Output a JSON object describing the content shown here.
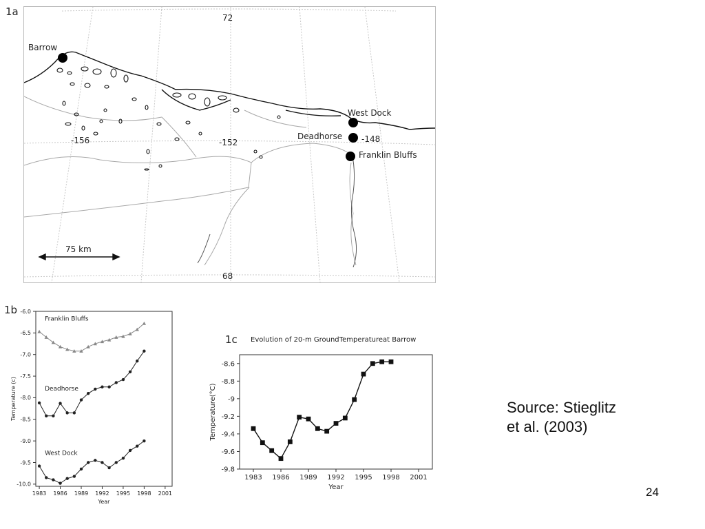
{
  "map": {
    "panel_label": "1a",
    "lat_labels": {
      "top": "72",
      "bottom": "68"
    },
    "lon_labels": [
      "-156",
      "-152",
      "-148"
    ],
    "places": {
      "barrow": "Barrow",
      "west_dock": "West  Dock",
      "deadhorse": "Deadhorse",
      "franklin_bluffs": "Franklin  Bluffs"
    },
    "scale_label": "75 km"
  },
  "chart_data": [
    {
      "id": "1b",
      "type": "line",
      "panel_label": "1b",
      "title": "",
      "xlabel": "Year",
      "ylabel": "Temperature (c)",
      "xlim": [
        1982.5,
        2002
      ],
      "ylim": [
        -10.05,
        -6.0
      ],
      "x_ticks": [
        1983,
        1986,
        1989,
        1992,
        1995,
        1998,
        2001
      ],
      "x_tick_labels": [
        "1983",
        "1986",
        "1989",
        "1992",
        "1995",
        "1998",
        "2001"
      ],
      "y_ticks": [
        -6.0,
        -6.5,
        -7.0,
        -7.5,
        -8.0,
        -8.5,
        -9.0,
        -9.5,
        -10.0
      ],
      "y_tick_labels": [
        "-6.0",
        "-6.5",
        "-7.0",
        "-7.5",
        "-8.0",
        "-8.5",
        "-9.0",
        "-9.5",
        "-10.0"
      ],
      "series": [
        {
          "name": "Franklin Bluffs",
          "marker": "triangle",
          "color": "#888888",
          "x": [
            1983,
            1984,
            1985,
            1986,
            1987,
            1988,
            1989,
            1990,
            1991,
            1992,
            1993,
            1994,
            1995,
            1996,
            1997,
            1998
          ],
          "y": [
            -6.47,
            -6.6,
            -6.72,
            -6.82,
            -6.88,
            -6.92,
            -6.92,
            -6.82,
            -6.75,
            -6.7,
            -6.66,
            -6.6,
            -6.58,
            -6.52,
            -6.42,
            -6.28
          ]
        },
        {
          "name": "Deadhorse",
          "marker": "circle",
          "color": "#222222",
          "x": [
            1983,
            1984,
            1985,
            1986,
            1987,
            1988,
            1989,
            1990,
            1991,
            1992,
            1993,
            1994,
            1995,
            1996,
            1997,
            1998
          ],
          "y": [
            -8.12,
            -8.42,
            -8.42,
            -8.13,
            -8.35,
            -8.35,
            -8.05,
            -7.9,
            -7.8,
            -7.75,
            -7.75,
            -7.65,
            -7.58,
            -7.4,
            -7.15,
            -6.92
          ]
        },
        {
          "name": "West Dock",
          "marker": "circle",
          "color": "#222222",
          "x": [
            1983,
            1984,
            1985,
            1986,
            1987,
            1988,
            1989,
            1990,
            1991,
            1992,
            1993,
            1994,
            1995,
            1996,
            1997,
            1998
          ],
          "y": [
            -9.58,
            -9.85,
            -9.9,
            -9.98,
            -9.87,
            -9.82,
            -9.65,
            -9.5,
            -9.45,
            -9.5,
            -9.62,
            -9.5,
            -9.4,
            -9.22,
            -9.12,
            -9.0
          ]
        }
      ]
    },
    {
      "id": "1c",
      "type": "line",
      "panel_label": "1c",
      "title": "Evolution of 20-m GroundTemperatureat Barrow",
      "xlabel": "Year",
      "ylabel": "Temperature(°C)",
      "xlim": [
        1981.5,
        2002.5
      ],
      "ylim": [
        -9.8,
        -8.5
      ],
      "x_ticks": [
        1983,
        1986,
        1989,
        1992,
        1995,
        1998,
        2001
      ],
      "x_tick_labels": [
        "1983",
        "1986",
        "1989",
        "1992",
        "1995",
        "1998",
        "2001"
      ],
      "y_ticks": [
        -8.6,
        -8.8,
        -9.0,
        -9.2,
        -9.4,
        -9.6,
        -9.8
      ],
      "y_tick_labels": [
        "-8.6",
        "-8.8",
        "-9",
        "-9.2",
        "-9.4",
        "-9.6",
        "-9.8"
      ],
      "series": [
        {
          "name": "",
          "marker": "square",
          "color": "#111111",
          "x": [
            1983,
            1984,
            1985,
            1986,
            1987,
            1988,
            1989,
            1990,
            1991,
            1992,
            1993,
            1994,
            1995,
            1996,
            1997,
            1998
          ],
          "y": [
            -9.34,
            -9.5,
            -9.59,
            -9.68,
            -9.49,
            -9.21,
            -9.23,
            -9.34,
            -9.37,
            -9.28,
            -9.22,
            -9.01,
            -8.72,
            -8.6,
            -8.58,
            -8.58
          ]
        }
      ]
    }
  ],
  "caption": {
    "line1": "Source: Stieglitz",
    "line2": "et al. (2003)"
  },
  "page_number": "24"
}
